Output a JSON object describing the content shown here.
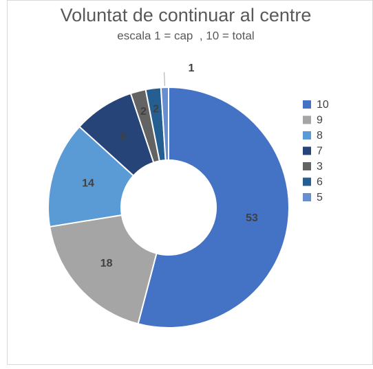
{
  "chart_data": {
    "type": "donut",
    "title": "Voluntat de continuar al centre",
    "subtitle": "escala 1 = cap  , 10 = total",
    "categories": [
      "10",
      "9",
      "8",
      "7",
      "3",
      "6",
      "5"
    ],
    "values": [
      53,
      18,
      14,
      8,
      2,
      2,
      1
    ],
    "colors": [
      "#4472c4",
      "#a5a5a5",
      "#5b9bd5",
      "#264478",
      "#636363",
      "#255e91",
      "#698ed0"
    ],
    "legend": "right"
  }
}
